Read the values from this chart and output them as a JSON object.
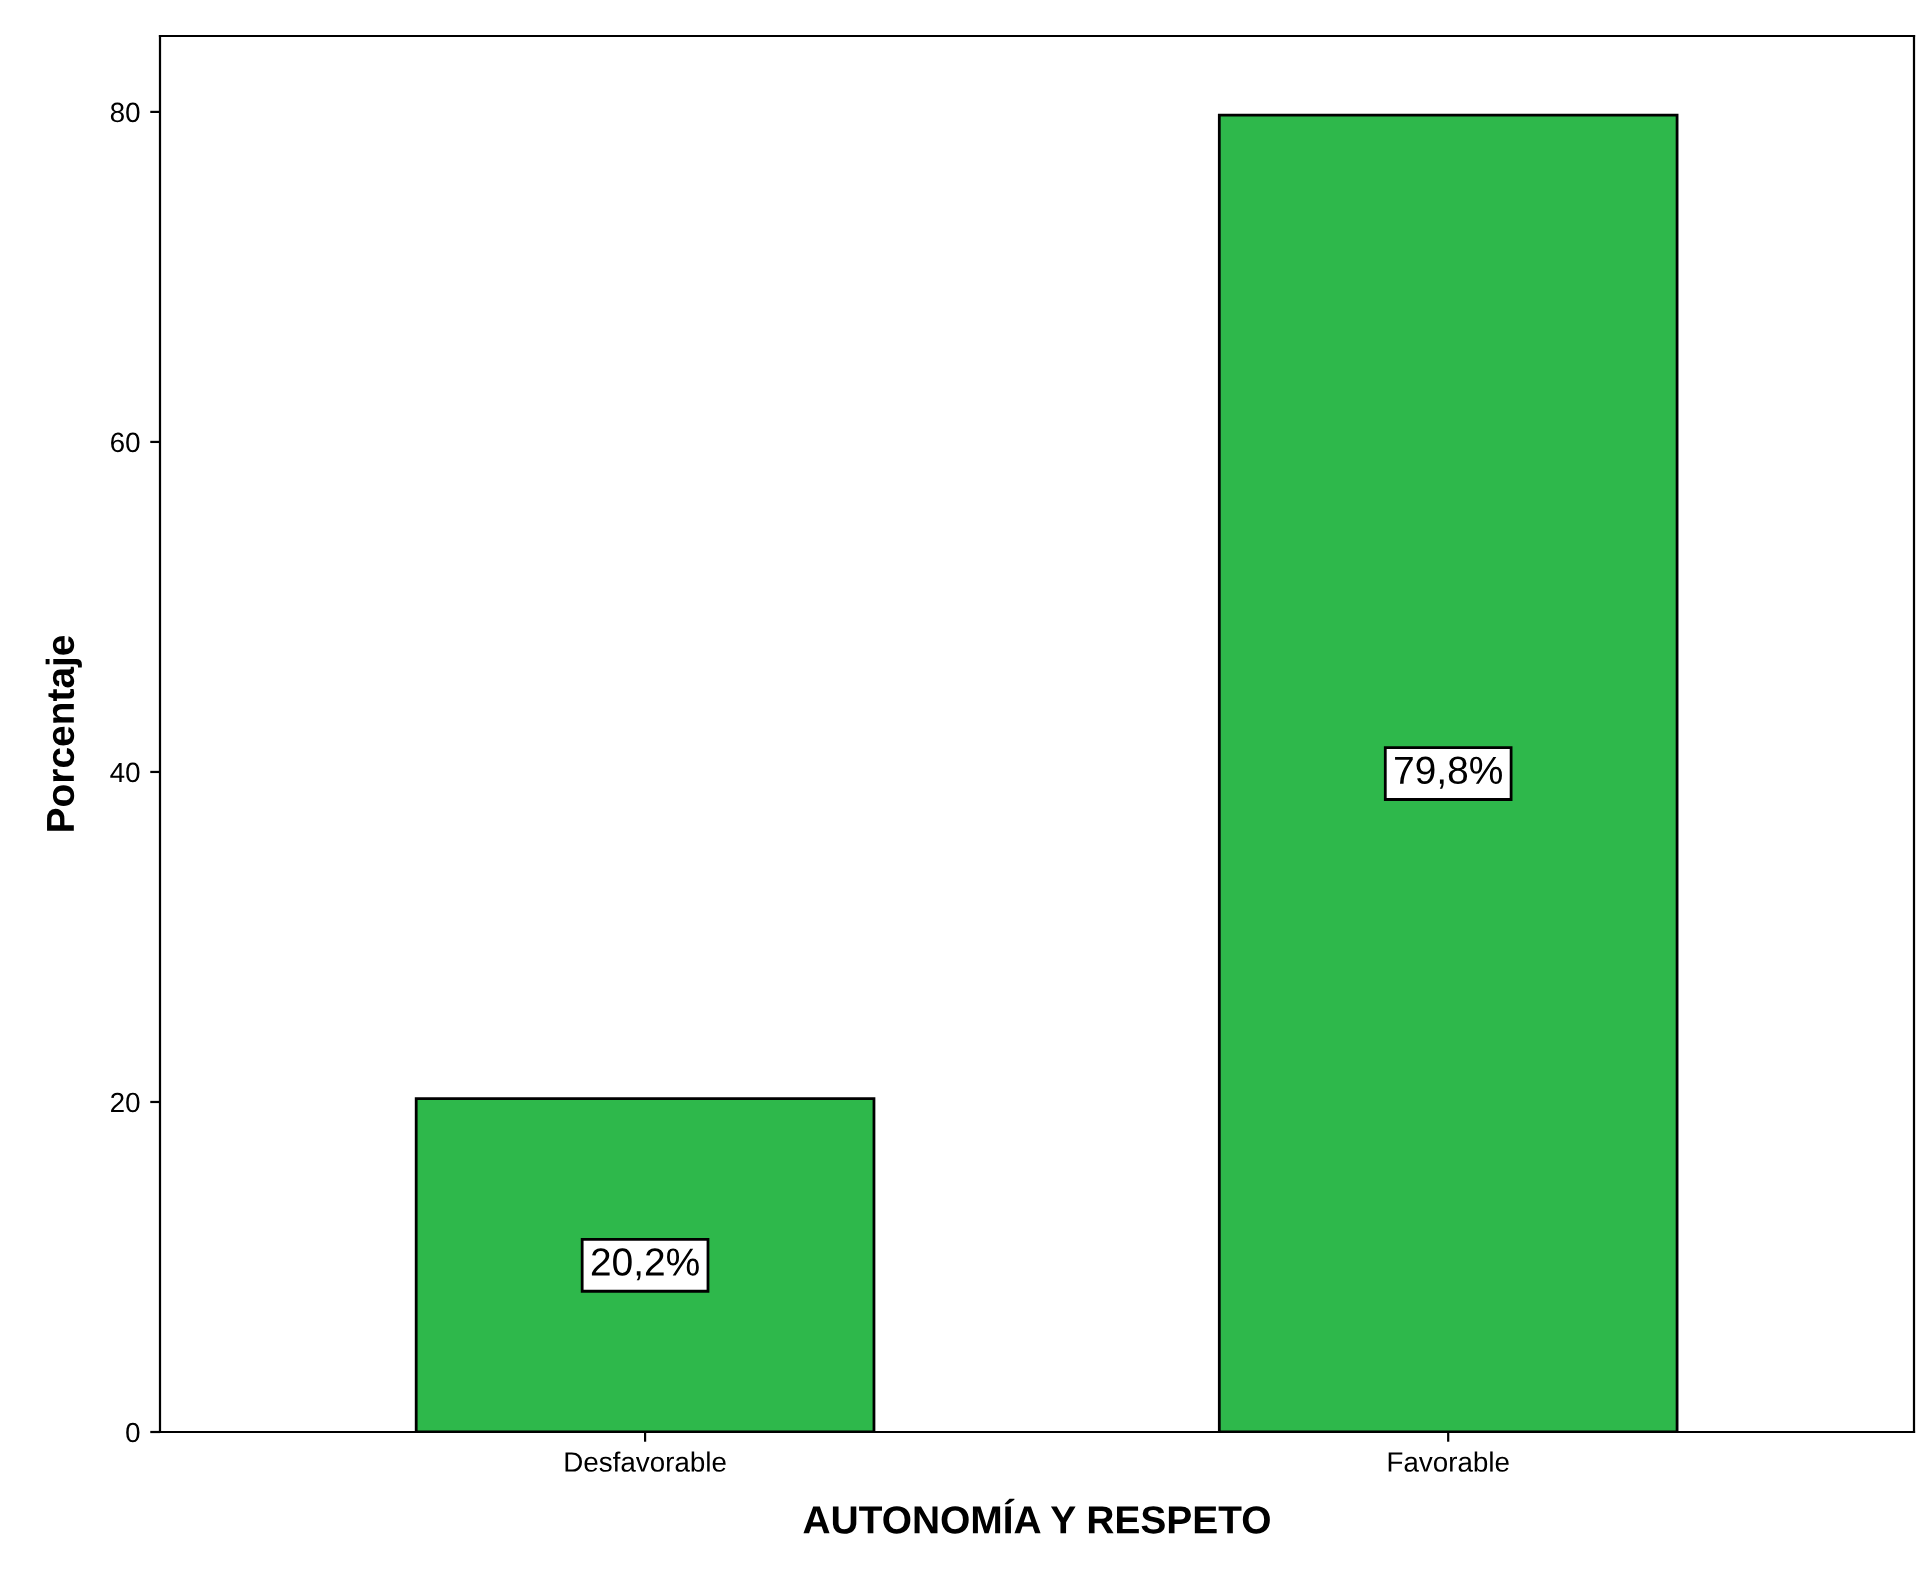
{
  "chart_data": {
    "type": "bar",
    "xlabel": "AUTONOMÍA Y RESPETO",
    "ylabel": "Porcentaje",
    "categories": [
      "Desfavorable",
      "Favorable"
    ],
    "values": [
      20.2,
      79.8
    ],
    "value_labels": [
      "20,2%",
      "79,8%"
    ],
    "color": "#2eb84b",
    "ylim": [
      0,
      84.6
    ],
    "yticks": [
      0,
      20,
      40,
      60,
      80
    ],
    "grid": false,
    "legend": false
  }
}
